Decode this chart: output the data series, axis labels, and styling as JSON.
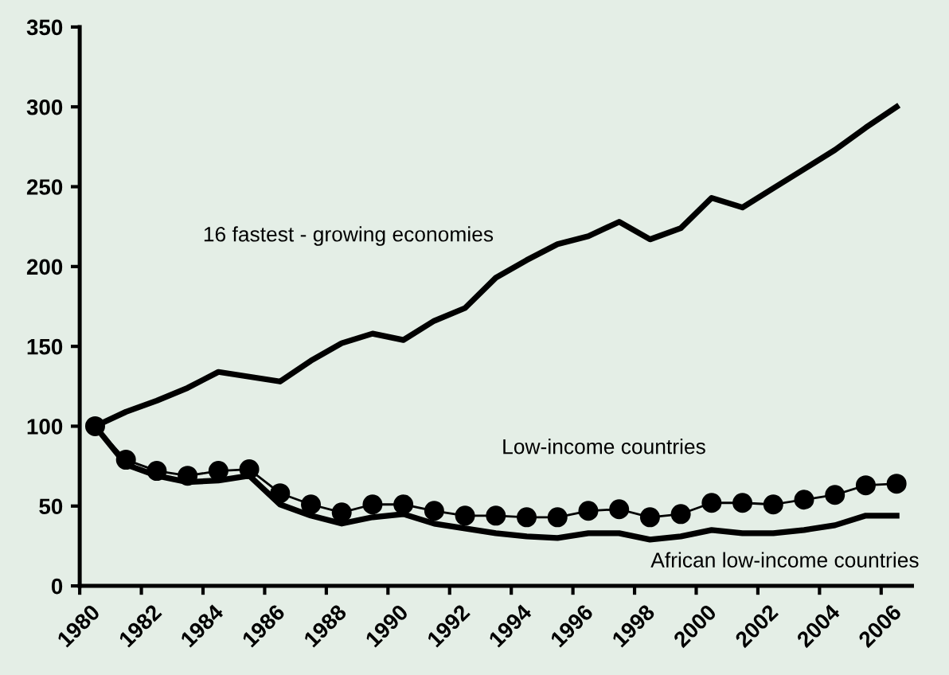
{
  "chart_data": {
    "type": "line",
    "x": [
      1980.5,
      1981.5,
      1982.5,
      1983.5,
      1984.5,
      1985.5,
      1986.5,
      1987.5,
      1988.5,
      1989.5,
      1990.5,
      1991.5,
      1992.5,
      1993.5,
      1994.5,
      1995.5,
      1996.5,
      1997.5,
      1998.5,
      1999.5,
      2000.5,
      2001.5,
      2002.5,
      2003.5,
      2004.5,
      2005.5,
      2006.5
    ],
    "series": [
      {
        "color": "#000000",
        "marker": "none",
        "values": [
          100,
          109,
          116,
          124,
          134,
          131,
          128,
          141,
          152,
          158,
          154,
          166,
          174,
          193,
          204,
          214,
          219,
          228,
          217,
          224,
          243,
          237,
          249,
          261,
          273,
          287,
          300
        ]
      },
      {
        "color": "#000000",
        "marker": "circle",
        "values": [
          100,
          79,
          72,
          69,
          72,
          73,
          58,
          51,
          46,
          51,
          51,
          47,
          44,
          44,
          43,
          43,
          47,
          48,
          43,
          45,
          52,
          52,
          51,
          54,
          57,
          63,
          64
        ]
      },
      {
        "color": "#000000",
        "marker": "none",
        "values": [
          100,
          76,
          69,
          65,
          66,
          69,
          51,
          44,
          39,
          43,
          45,
          39,
          36,
          33,
          31,
          30,
          33,
          33,
          29,
          31,
          35,
          33,
          33,
          35,
          38,
          44,
          44
        ]
      }
    ],
    "xlim": [
      1980,
      2007
    ],
    "xticks": [
      1980,
      1982,
      1984,
      1986,
      1988,
      1990,
      1992,
      1994,
      1996,
      1998,
      2000,
      2002,
      2004,
      2006
    ],
    "ylim": [
      0,
      350
    ],
    "yticks": [
      0,
      50,
      100,
      150,
      200,
      250,
      300,
      350
    ],
    "grid": false,
    "legend": false,
    "annotations": [
      "16 fastest - growing economies",
      "Low-income countries",
      "African low-income countries"
    ]
  }
}
